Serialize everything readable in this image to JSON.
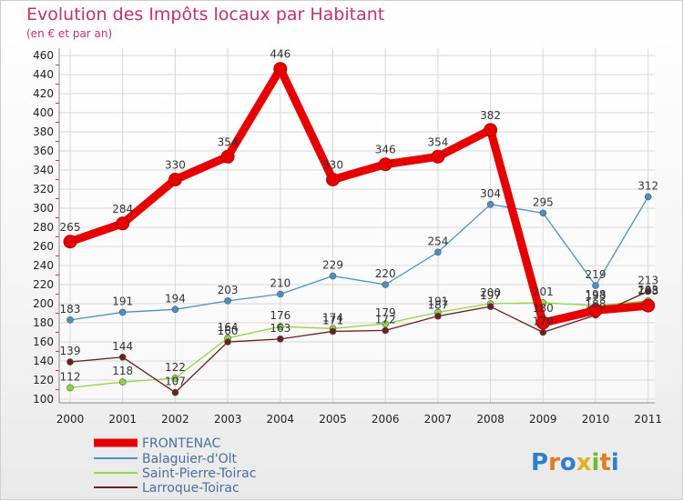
{
  "title": "Evolution des Impôts locaux par Habitant",
  "subtitle": "(en € et par an)",
  "logo": "Proxiti",
  "chart_data": {
    "type": "line",
    "title": "Evolution des Impôts locaux par Habitant",
    "subtitle": "(en € et par an)",
    "xlabel": "",
    "ylabel": "",
    "ylim": [
      100,
      460
    ],
    "y_ticks": [
      100,
      120,
      140,
      160,
      180,
      200,
      220,
      240,
      260,
      280,
      300,
      320,
      340,
      360,
      380,
      400,
      420,
      440,
      460
    ],
    "categories": [
      "2000",
      "2001",
      "2002",
      "2003",
      "2004",
      "2005",
      "2006",
      "2007",
      "2008",
      "2009",
      "2010",
      "2011"
    ],
    "legend_position": "bottom-left",
    "grid": true,
    "series": [
      {
        "name": "FRONTENAC",
        "color": "#e60000",
        "values": [
          265,
          284,
          330,
          354,
          446,
          330,
          346,
          354,
          382,
          180,
          193,
          198
        ]
      },
      {
        "name": "Balaguier-d'Olt",
        "color": "#4a90c8",
        "values": [
          183,
          191,
          194,
          203,
          210,
          229,
          220,
          254,
          304,
          295,
          219,
          312
        ]
      },
      {
        "name": "Saint-Pierre-Toirac",
        "color": "#8fd640",
        "values": [
          112,
          118,
          122,
          164,
          176,
          174,
          179,
          191,
          200,
          201,
          198,
          203
        ]
      },
      {
        "name": "Larroque-Toirac",
        "color": "#6b1f1f",
        "values": [
          139,
          144,
          107,
          160,
          163,
          171,
          172,
          187,
          197,
          170,
          188,
          213
        ]
      }
    ]
  }
}
